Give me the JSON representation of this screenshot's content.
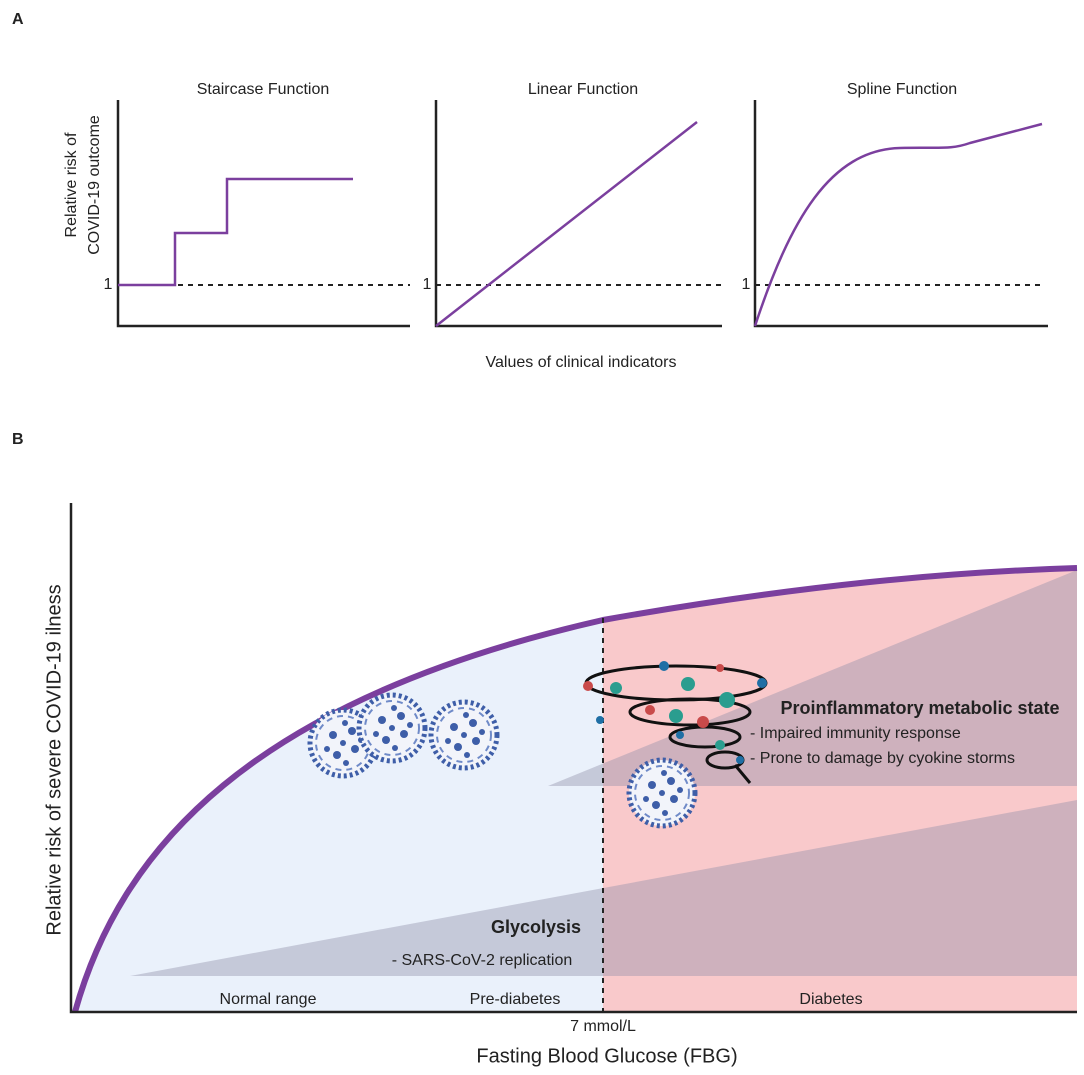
{
  "panel_a": {
    "label": "A",
    "y_label": [
      "Relative risk of",
      "COVID-19 outcome"
    ],
    "x_label": "Values of clinical indicators",
    "plots": [
      {
        "title": "Staircase Function",
        "ref": "1"
      },
      {
        "title": "Linear Function",
        "ref": "1"
      },
      {
        "title": "Spline Function",
        "ref": "1"
      }
    ]
  },
  "panel_b": {
    "label": "B",
    "y_label": "Relative risk of severe COVID-19 ilness",
    "x_label": "Fasting Blood Glucose (FBG)",
    "threshold": "7 mmol/L",
    "ranges": [
      "Normal range",
      "Pre-diabetes",
      "Diabetes"
    ],
    "glycolysis": {
      "title": "Glycolysis",
      "items": [
        "- SARS-CoV-2 replication"
      ]
    },
    "proinflammatory": {
      "title": "Proinflammatory metabolic state",
      "items": [
        "- Impaired immunity response",
        "- Prone to damage by cyokine storms"
      ]
    }
  }
}
